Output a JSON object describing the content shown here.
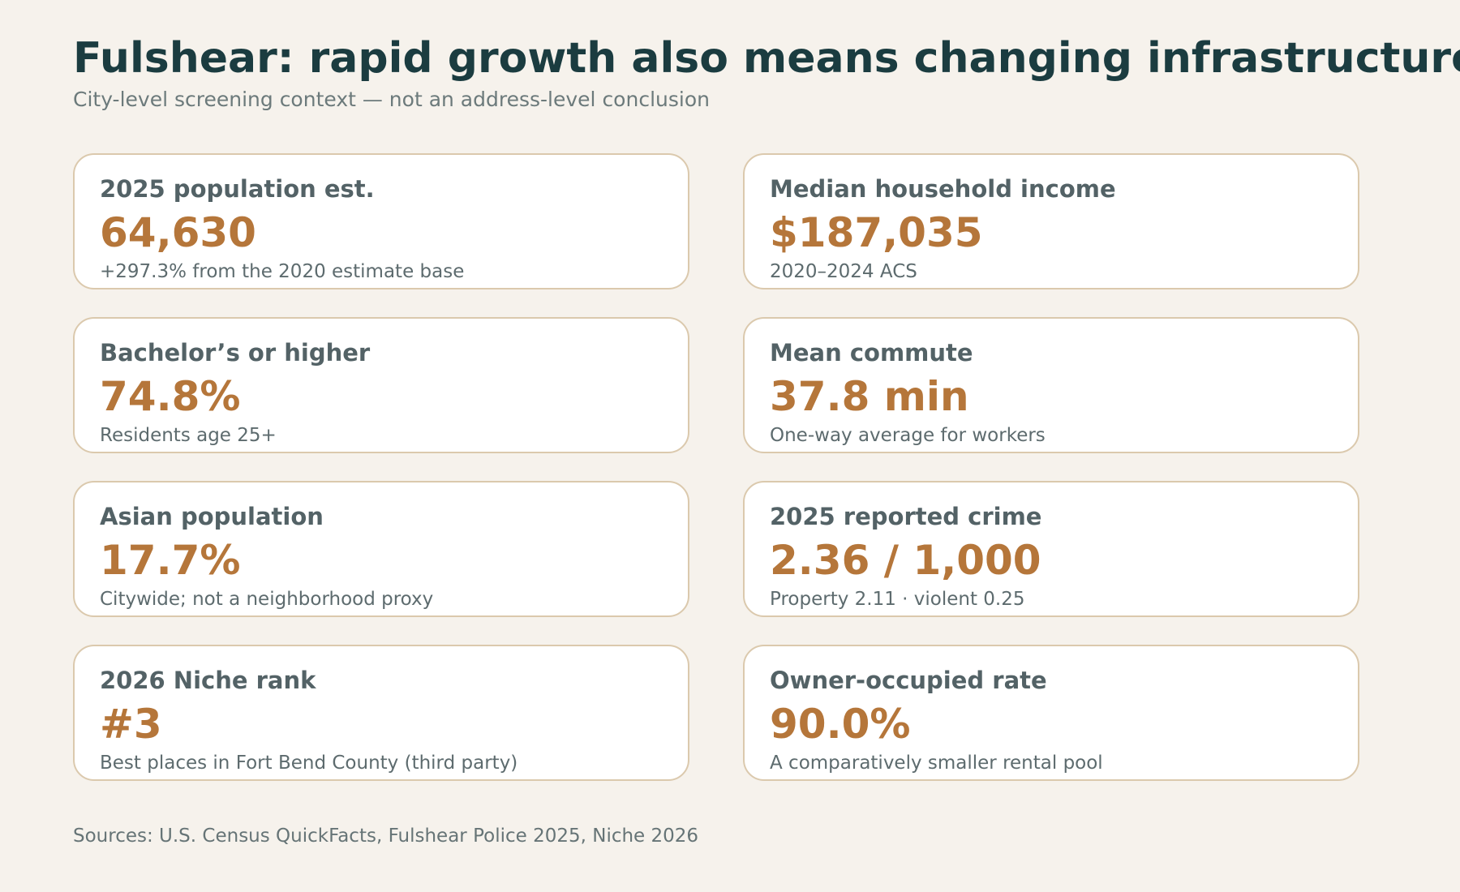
{
  "header": {
    "title": "Fulshear: rapid growth also means changing infrastructure and bounda",
    "subtitle": "City-level screening context — not an address-level conclusion"
  },
  "cards": [
    {
      "label": "2025 population est.",
      "value": "64,630",
      "note": "+297.3% from the 2020 estimate base"
    },
    {
      "label": "Median household income",
      "value": "$187,035",
      "note": "2020–2024 ACS"
    },
    {
      "label": "Bachelor’s or higher",
      "value": "74.8%",
      "note": "Residents age 25+"
    },
    {
      "label": "Mean commute",
      "value": "37.8 min",
      "note": "One-way average for workers"
    },
    {
      "label": "Asian population",
      "value": "17.7%",
      "note": "Citywide; not a neighborhood proxy"
    },
    {
      "label": "2025 reported crime",
      "value": "2.36 / 1,000",
      "note": "Property 2.11 · violent 0.25"
    },
    {
      "label": "2026 Niche rank",
      "value": "#3",
      "note": "Best places in Fort Bend County (third party)"
    },
    {
      "label": "Owner-occupied rate",
      "value": "90.0%",
      "note": "A comparatively smaller rental pool"
    }
  ],
  "footer": {
    "sources": "Sources: U.S. Census QuickFacts, Fulshear Police 2025, Niche 2026"
  },
  "colors": {
    "background": "#f6f2ec",
    "title": "#1b3c40",
    "value_accent": "#b5763a",
    "card_border": "#dbc9ad"
  }
}
